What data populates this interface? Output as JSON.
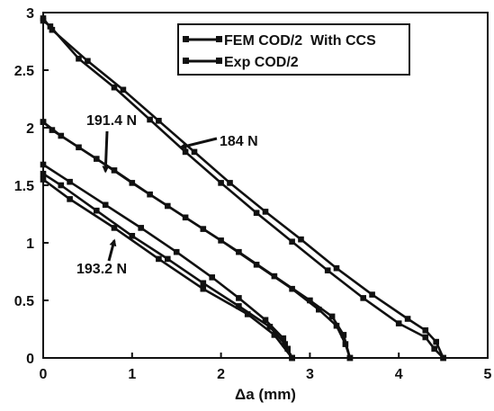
{
  "chart_data": {
    "type": "line",
    "xlabel": "Δa (mm)",
    "ylabel": "",
    "xlim": [
      0,
      5
    ],
    "ylim": [
      0,
      3
    ],
    "xticks": [
      "0",
      "1",
      "2",
      "3",
      "4",
      "5"
    ],
    "yticks": [
      "0",
      "0.5",
      "1",
      "1.5",
      "2",
      "2.5",
      "3"
    ],
    "grid": false,
    "legend_position": "top-right",
    "legend": [
      "FEM COD/2  With CCS",
      "Exp COD/2"
    ],
    "series": [
      {
        "name": "FEM COD/2  With CCS",
        "group": "184 N",
        "x": [
          0,
          0.08,
          0.4,
          0.8,
          1.2,
          1.6,
          2.0,
          2.4,
          2.8,
          3.2,
          3.6,
          4.0,
          4.3,
          4.4,
          4.5
        ],
        "y": [
          2.93,
          2.88,
          2.6,
          2.35,
          2.07,
          1.79,
          1.52,
          1.26,
          1.01,
          0.76,
          0.52,
          0.3,
          0.18,
          0.08,
          0.0
        ]
      },
      {
        "name": "Exp COD/2",
        "group": "184 N",
        "x": [
          0,
          0.1,
          0.5,
          0.9,
          1.3,
          1.7,
          2.1,
          2.5,
          2.9,
          3.3,
          3.7,
          4.1,
          4.3,
          4.42,
          4.5
        ],
        "y": [
          2.95,
          2.85,
          2.58,
          2.33,
          2.06,
          1.79,
          1.52,
          1.27,
          1.03,
          0.78,
          0.55,
          0.34,
          0.24,
          0.14,
          0.0
        ]
      },
      {
        "name": "FEM COD/2  With CCS",
        "group": "191.4 N",
        "x": [
          0,
          0.1,
          0.4,
          0.8,
          1.2,
          1.6,
          2.0,
          2.4,
          2.8,
          3.1,
          3.3,
          3.4,
          3.45
        ],
        "y": [
          2.05,
          1.98,
          1.83,
          1.63,
          1.42,
          1.22,
          1.02,
          0.81,
          0.6,
          0.42,
          0.28,
          0.12,
          0.0
        ]
      },
      {
        "name": "Exp COD/2",
        "group": "191.4 N",
        "x": [
          0,
          0.2,
          0.6,
          1.0,
          1.4,
          1.8,
          2.2,
          2.6,
          3.0,
          3.25,
          3.38,
          3.45
        ],
        "y": [
          2.05,
          1.93,
          1.73,
          1.52,
          1.32,
          1.12,
          0.92,
          0.71,
          0.5,
          0.36,
          0.2,
          0.0
        ]
      },
      {
        "name": "FEM COD/2  With CCS",
        "group": "193.2 N",
        "x": [
          0,
          0.3,
          0.7,
          1.1,
          1.5,
          1.9,
          2.2,
          2.5,
          2.7,
          2.75,
          2.8
        ],
        "y": [
          1.68,
          1.53,
          1.33,
          1.13,
          0.92,
          0.7,
          0.52,
          0.33,
          0.17,
          0.08,
          0.0
        ]
      },
      {
        "name": "Exp COD/2",
        "group": "193.2 N",
        "x": [
          0,
          0.2,
          0.6,
          1.0,
          1.4,
          1.8,
          2.2,
          2.55,
          2.72,
          2.8
        ],
        "y": [
          1.6,
          1.5,
          1.28,
          1.06,
          0.86,
          0.65,
          0.45,
          0.27,
          0.12,
          0.0
        ]
      },
      {
        "name": "Exp COD/2",
        "group": "193.2 N",
        "x": [
          0,
          0.3,
          0.8,
          1.3,
          1.8,
          2.3,
          2.6,
          2.8
        ],
        "y": [
          1.55,
          1.38,
          1.13,
          0.86,
          0.6,
          0.38,
          0.2,
          0.0
        ]
      }
    ],
    "annotations": [
      {
        "text": "184 N",
        "x": 1.55,
        "y": 1.83
      },
      {
        "text": "191.4 N",
        "x": 0.7,
        "y": 1.62
      },
      {
        "text": "193.2 N",
        "x": 0.8,
        "y": 1.02
      }
    ]
  }
}
